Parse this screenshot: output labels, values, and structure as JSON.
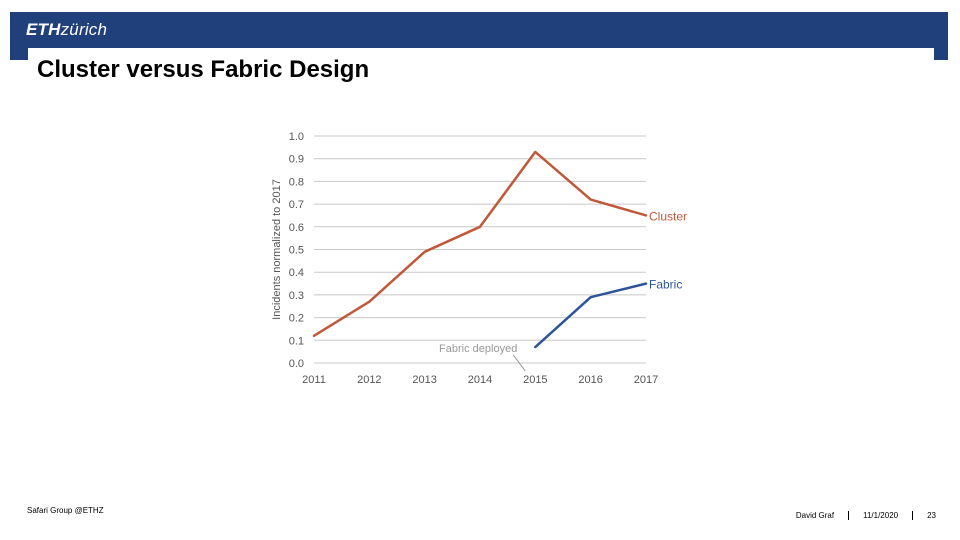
{
  "header": {
    "logo_eth": "ETH",
    "logo_zurich": "zürich",
    "bar_color": "#1f407a"
  },
  "slide": {
    "title": "Cluster versus Fabric Design"
  },
  "footer": {
    "group": "Safari Group @ETHZ",
    "author": "David Graf",
    "date": "11/1/2020",
    "page": "23"
  },
  "chart_data": {
    "type": "line",
    "x": [
      2011,
      2012,
      2013,
      2014,
      2015,
      2016,
      2017
    ],
    "x_tick_labels": [
      "2011",
      "2012",
      "2013",
      "2014",
      "2015",
      "2016",
      "2017"
    ],
    "ylabel": "Incidents normalized to 2017",
    "ylim": [
      0,
      1.0
    ],
    "y_ticks": [
      0.0,
      0.1,
      0.2,
      0.3,
      0.4,
      0.5,
      0.6,
      0.7,
      0.8,
      0.9,
      1.0
    ],
    "y_tick_labels": [
      "0.0",
      "0.1",
      "0.2",
      "0.3",
      "0.4",
      "0.5",
      "0.6",
      "0.7",
      "0.8",
      "0.9",
      "1.0"
    ],
    "grid": true,
    "series": [
      {
        "name": "Cluster",
        "color": "#c0583a",
        "x": [
          2011,
          2012,
          2013,
          2014,
          2015,
          2016,
          2017
        ],
        "values": [
          0.12,
          0.27,
          0.49,
          0.6,
          0.93,
          0.72,
          0.65
        ]
      },
      {
        "name": "Fabric",
        "color": "#2f5597",
        "x": [
          2015,
          2016,
          2017
        ],
        "values": [
          0.07,
          0.29,
          0.35
        ]
      }
    ],
    "annotation": {
      "text": "Fabric deployed",
      "x": 2015,
      "y": 0.07
    }
  }
}
